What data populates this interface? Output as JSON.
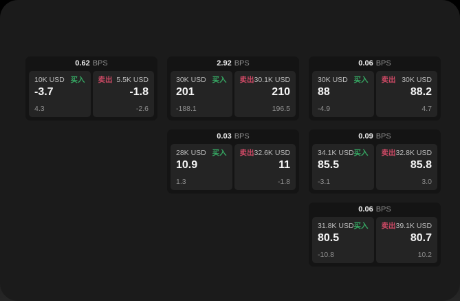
{
  "labels": {
    "bps_unit": "BPS",
    "buy": "买入",
    "sell": "卖出"
  },
  "colors": {
    "buy_color": "#36a863",
    "sell_color": "#d04a66",
    "page_bg": "#1b1b1b",
    "card_bg": "#141414",
    "panel_bg": "#242424"
  },
  "cards": [
    {
      "spread": "0.62",
      "buy": {
        "notional": "10K USD",
        "price": "-3.7",
        "change": "4.3"
      },
      "sell": {
        "notional": "5.5K USD",
        "price": "-1.8",
        "change": "-2.6"
      }
    },
    {
      "spread": "2.92",
      "buy": {
        "notional": "30K USD",
        "price": "201",
        "change": "-188.1"
      },
      "sell": {
        "notional": "30.1K USD",
        "price": "210",
        "change": "196.5"
      }
    },
    {
      "spread": "0.06",
      "buy": {
        "notional": "30K USD",
        "price": "88",
        "change": "-4.9"
      },
      "sell": {
        "notional": "30K USD",
        "price": "88.2",
        "change": "4.7"
      }
    },
    {
      "spread": "0.03",
      "buy": {
        "notional": "28K USD",
        "price": "10.9",
        "change": "1.3"
      },
      "sell": {
        "notional": "32.6K USD",
        "price": "11",
        "change": "-1.8"
      }
    },
    {
      "spread": "0.09",
      "buy": {
        "notional": "34.1K USD",
        "price": "85.5",
        "change": "-3.1"
      },
      "sell": {
        "notional": "32.8K USD",
        "price": "85.8",
        "change": "3.0"
      }
    },
    {
      "spread": "0.06",
      "buy": {
        "notional": "31.8K USD",
        "price": "80.5",
        "change": "-10.8"
      },
      "sell": {
        "notional": "39.1K USD",
        "price": "80.7",
        "change": "10.2"
      }
    }
  ]
}
